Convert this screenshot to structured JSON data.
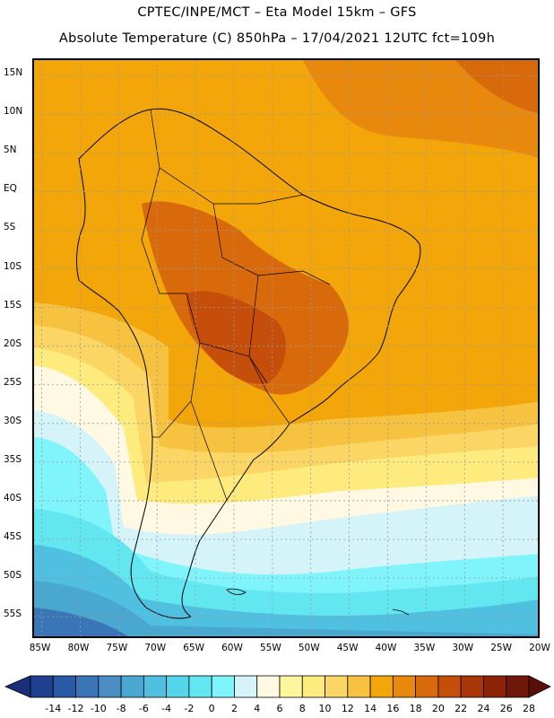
{
  "header": {
    "line1": "CPTEC/INPE/MCT –  Eta Model 15km – GFS",
    "line2": "Absolute Temperature (C) 850hPa – 17/04/2021 12UTC fct=109h"
  },
  "map": {
    "lat_labels": [
      "15N",
      "10N",
      "5N",
      "EQ",
      "5S",
      "10S",
      "15S",
      "20S",
      "25S",
      "30S",
      "35S",
      "40S",
      "45S",
      "50S",
      "55S"
    ],
    "lon_labels": [
      "85W",
      "80W",
      "75W",
      "70W",
      "65W",
      "60W",
      "55W",
      "50W",
      "45W",
      "40W",
      "35W",
      "30W",
      "25W",
      "20W"
    ],
    "lat_range": [
      17,
      -58
    ],
    "lon_range": [
      -86,
      -20
    ]
  },
  "colorbar": {
    "ticks": [
      "-14",
      "-12",
      "-10",
      "-8",
      "-6",
      "-4",
      "-2",
      "0",
      "2",
      "4",
      "6",
      "8",
      "10",
      "12",
      "14",
      "16",
      "18",
      "20",
      "22",
      "24",
      "26",
      "28"
    ],
    "colors": [
      "#1f3f8f",
      "#2a5aa6",
      "#3a75b8",
      "#4a8ec4",
      "#4aa7cf",
      "#4fc0df",
      "#55d4ea",
      "#62e6f0",
      "#7ff5fb",
      "#d4f4fa",
      "#fff8e3",
      "#fff69e",
      "#feeb7e",
      "#fbd664",
      "#f6c23f",
      "#f2a60a",
      "#e8890e",
      "#d96a0c",
      "#c44e0a",
      "#a83608",
      "#8c2306",
      "#701808"
    ]
  },
  "colors": {
    "coast": "#000000",
    "grid": "#9a9a9a"
  }
}
